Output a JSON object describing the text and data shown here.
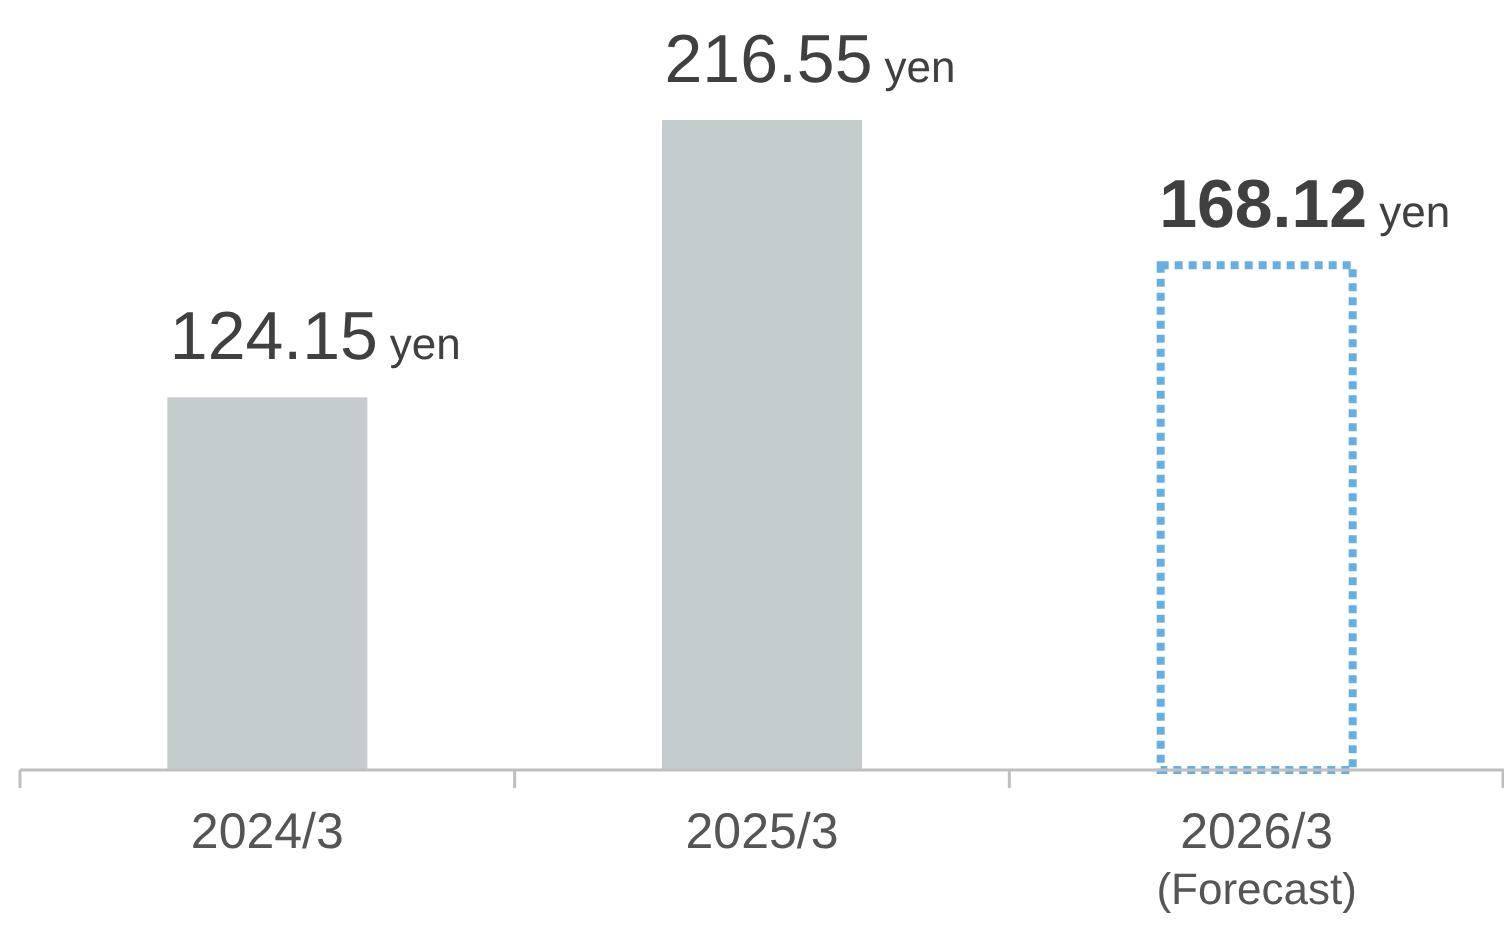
{
  "chart_data": {
    "type": "bar",
    "categories": [
      "2024/3",
      "2025/3",
      "2026/3\n(Forecast)"
    ],
    "series": [
      {
        "color": "#c5ccd0",
        "values": [
          124.15,
          216.55,
          null
        ],
        "value_labels": [
          "124.15 yen",
          "216.55 yen",
          null
        ]
      },
      {
        "color": "#6aaee0",
        "line_style": "dotted",
        "values": [
          null,
          null,
          168.12
        ],
        "value_labels": [
          null,
          null,
          "168.12 yen"
        ]
      }
    ]
  }
}
